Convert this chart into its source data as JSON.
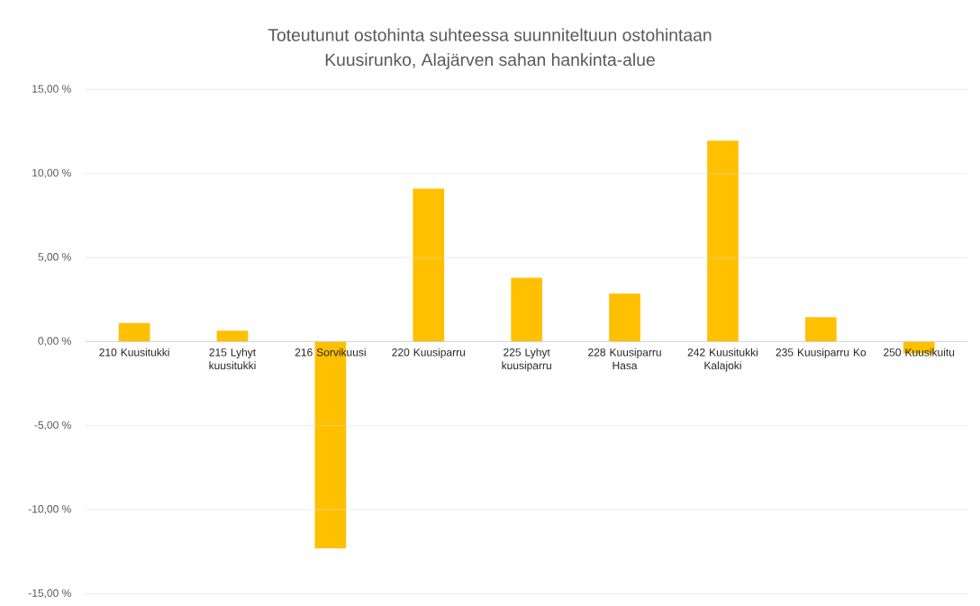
{
  "chart_data": {
    "type": "bar",
    "title": "Toteutunut ostohinta suhteessa suunniteltuun ostohintaan",
    "subtitle": "Kuusirunko, Alajärven sahan hankinta-alue",
    "categories": [
      "210 Kuusitukki",
      "215 Lyhyt kuusitukki",
      "216 Sorvikuusi",
      "220 Kuusiparru",
      "225 Lyhyt kuusiparru",
      "228 Kuusiparru Hasa",
      "242 Kuusitukki Kalajoki",
      "235 Kuusiparru Ko",
      "250 Kuusikuitu"
    ],
    "values": [
      1.1,
      0.65,
      -12.3,
      9.1,
      3.8,
      2.85,
      11.95,
      1.45,
      -0.7
    ],
    "color": "#ffc000",
    "ylim": [
      -15,
      15
    ],
    "yticks": [
      {
        "value": -15,
        "label": "-15,00 %"
      },
      {
        "value": -10,
        "label": "-10,00 %"
      },
      {
        "value": -5,
        "label": "-5,00 %"
      },
      {
        "value": 0,
        "label": "0,00 %"
      },
      {
        "value": 5,
        "label": "5,00 %"
      },
      {
        "value": 10,
        "label": "10,00 %"
      },
      {
        "value": 15,
        "label": "15,00 %"
      }
    ],
    "grid": "y"
  }
}
